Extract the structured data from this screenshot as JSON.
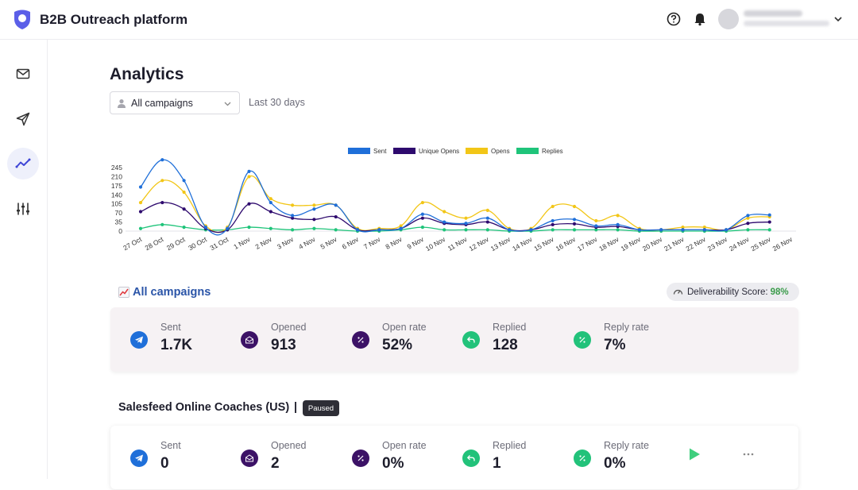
{
  "header": {
    "app_title": "B2B Outreach platform",
    "icons": [
      "logo-icon",
      "help-icon",
      "bell-icon",
      "chevron-down-icon"
    ],
    "accent": "#5b5fe8"
  },
  "sidebar": {
    "items": [
      {
        "name": "mail",
        "icon": "mail-icon",
        "active": false
      },
      {
        "name": "send",
        "icon": "send-icon",
        "active": false
      },
      {
        "name": "analytics",
        "icon": "trend-icon",
        "active": true
      },
      {
        "name": "settings",
        "icon": "sliders-icon",
        "active": false
      }
    ]
  },
  "page": {
    "title": "Analytics",
    "campaign_filter": "All campaigns",
    "date_range": "Last 30 days"
  },
  "chart_data": {
    "type": "line",
    "categories": [
      "27 Oct",
      "28 Oct",
      "29 Oct",
      "30 Oct",
      "31 Oct",
      "1 Nov",
      "2 Nov",
      "3 Nov",
      "4 Nov",
      "5 Nov",
      "6 Nov",
      "7 Nov",
      "8 Nov",
      "9 Nov",
      "10 Nov",
      "11 Nov",
      "12 Nov",
      "13 Nov",
      "14 Nov",
      "15 Nov",
      "16 Nov",
      "17 Nov",
      "18 Nov",
      "19 Nov",
      "20 Nov",
      "21 Nov",
      "22 Nov",
      "23 Nov",
      "24 Nov",
      "25 Nov",
      "26 Nov"
    ],
    "y_ticks": [
      "245",
      "210",
      "175",
      "140",
      "105",
      "70",
      "35",
      "0"
    ],
    "ylim": [
      0,
      245
    ],
    "legend_position": "top",
    "series": [
      {
        "name": "Sent",
        "color": "#1f6fd9",
        "values": [
          170,
          275,
          195,
          15,
          10,
          230,
          110,
          60,
          85,
          100,
          5,
          5,
          10,
          65,
          35,
          30,
          50,
          5,
          5,
          40,
          45,
          20,
          25,
          5,
          5,
          5,
          5,
          5,
          60,
          62,
          null
        ]
      },
      {
        "name": "Unique Opens",
        "color": "#2e0a6e",
        "values": [
          75,
          110,
          85,
          10,
          5,
          105,
          75,
          50,
          45,
          55,
          5,
          5,
          10,
          50,
          30,
          25,
          35,
          5,
          5,
          25,
          28,
          15,
          18,
          5,
          5,
          5,
          5,
          5,
          30,
          35,
          null
        ]
      },
      {
        "name": "Opens",
        "color": "#f2c617",
        "values": [
          110,
          195,
          150,
          20,
          15,
          210,
          125,
          100,
          100,
          100,
          10,
          10,
          20,
          110,
          75,
          50,
          80,
          10,
          10,
          95,
          95,
          40,
          60,
          10,
          5,
          15,
          15,
          5,
          50,
          55,
          null
        ]
      },
      {
        "name": "Replies",
        "color": "#1fc47a",
        "values": [
          10,
          25,
          15,
          5,
          5,
          15,
          10,
          5,
          10,
          5,
          0,
          0,
          5,
          15,
          5,
          5,
          5,
          0,
          0,
          5,
          5,
          5,
          5,
          0,
          0,
          0,
          0,
          0,
          5,
          5,
          null
        ]
      }
    ]
  },
  "all_campaigns": {
    "title": "All campaigns",
    "deliverability_label": "Deliverability Score:",
    "deliverability_value": "98%",
    "stats": [
      {
        "label": "Sent",
        "value": "1.7K",
        "icon": "telegram-icon",
        "color": "#1f6fd9"
      },
      {
        "label": "Opened",
        "value": "913",
        "icon": "envelope-open-icon",
        "color": "#3c1266"
      },
      {
        "label": "Open rate",
        "value": "52%",
        "icon": "percent-icon",
        "color": "#3c1266"
      },
      {
        "label": "Replied",
        "value": "128",
        "icon": "reply-icon",
        "color": "#22c27a"
      },
      {
        "label": "Reply rate",
        "value": "7%",
        "icon": "percent-icon",
        "color": "#22c27a"
      }
    ]
  },
  "campaign": {
    "title": "Salesfeed Online Coaches (US)",
    "separator": "|",
    "status": "Paused",
    "stats": [
      {
        "label": "Sent",
        "value": "0",
        "icon": "telegram-icon",
        "color": "#1f6fd9"
      },
      {
        "label": "Opened",
        "value": "2",
        "icon": "envelope-open-icon",
        "color": "#3c1266"
      },
      {
        "label": "Open rate",
        "value": "0%",
        "icon": "percent-icon",
        "color": "#3c1266"
      },
      {
        "label": "Replied",
        "value": "1",
        "icon": "reply-icon",
        "color": "#22c27a"
      },
      {
        "label": "Reply rate",
        "value": "0%",
        "icon": "percent-icon",
        "color": "#22c27a"
      }
    ],
    "actions": [
      "play-icon",
      "more-icon"
    ]
  }
}
